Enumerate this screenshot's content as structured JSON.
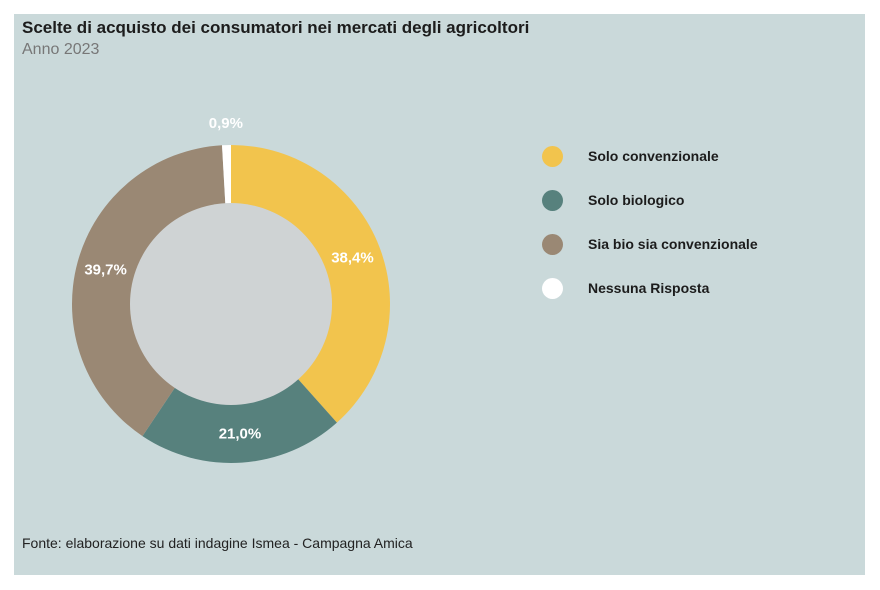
{
  "chart_data": {
    "type": "pie",
    "title": "Scelte di acquisto dei consumatori nei mercati degli agricoltori",
    "subtitle": "Anno 2023",
    "categories": [
      "Solo convenzionale",
      "Solo biologico",
      "Sia bio sia convenzionale",
      "Nessuna Risposta"
    ],
    "values": [
      38.4,
      21.0,
      39.7,
      0.9
    ],
    "value_labels": [
      "38,4%",
      "21,0%",
      "39,7%",
      "0,9%"
    ],
    "colors": [
      "#f2c44d",
      "#57817d",
      "#9a8874",
      "#ffffff"
    ],
    "legend_position": "right",
    "donut": true
  },
  "source": "Fonte: elaborazione su dati indagine Ismea - Campagna Amica"
}
